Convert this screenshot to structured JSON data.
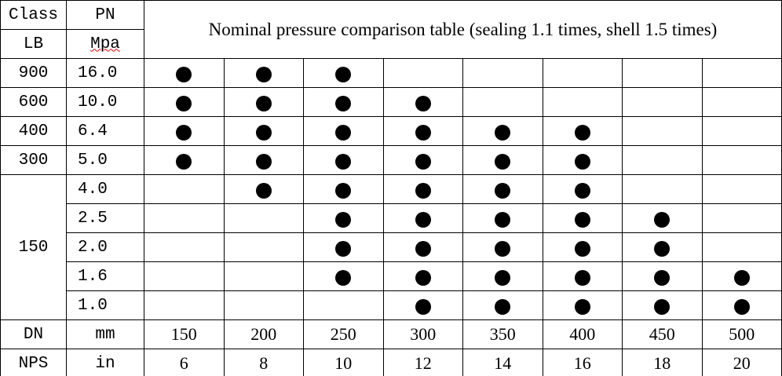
{
  "header": {
    "class": "Class",
    "pn": "PN",
    "lb": "LB",
    "mpa": "Mpa",
    "title": "Nominal pressure comparison table (sealing 1.1 times, shell 1.5 times)"
  },
  "groups": [
    {
      "class": "900",
      "rows": [
        {
          "pn": "16.0",
          "dots": [
            true,
            true,
            true,
            false,
            false,
            false,
            false,
            false
          ]
        }
      ]
    },
    {
      "class": "600",
      "rows": [
        {
          "pn": "10.0",
          "dots": [
            true,
            true,
            true,
            true,
            false,
            false,
            false,
            false
          ]
        }
      ]
    },
    {
      "class": "400",
      "rows": [
        {
          "pn": "6.4",
          "dots": [
            true,
            true,
            true,
            true,
            true,
            true,
            false,
            false
          ]
        }
      ]
    },
    {
      "class": "300",
      "rows": [
        {
          "pn": "5.0",
          "dots": [
            true,
            true,
            true,
            true,
            true,
            true,
            false,
            false
          ]
        }
      ]
    },
    {
      "class": "150",
      "rows": [
        {
          "pn": "4.0",
          "dots": [
            false,
            true,
            true,
            true,
            true,
            true,
            false,
            false
          ]
        },
        {
          "pn": "2.5",
          "dots": [
            false,
            false,
            true,
            true,
            true,
            true,
            true,
            false
          ]
        },
        {
          "pn": "2.0",
          "dots": [
            false,
            false,
            true,
            true,
            true,
            true,
            true,
            false
          ]
        },
        {
          "pn": "1.6",
          "dots": [
            false,
            false,
            true,
            true,
            true,
            true,
            true,
            true
          ]
        },
        {
          "pn": "1.0",
          "dots": [
            false,
            false,
            false,
            true,
            true,
            true,
            true,
            true
          ]
        }
      ]
    }
  ],
  "footer": [
    {
      "label": "DN",
      "unit": "mm",
      "values": [
        150,
        200,
        250,
        300,
        350,
        400,
        450,
        500
      ]
    },
    {
      "label": "NPS",
      "unit": "in",
      "values": [
        6,
        8,
        10,
        12,
        14,
        16,
        18,
        20
      ]
    }
  ]
}
